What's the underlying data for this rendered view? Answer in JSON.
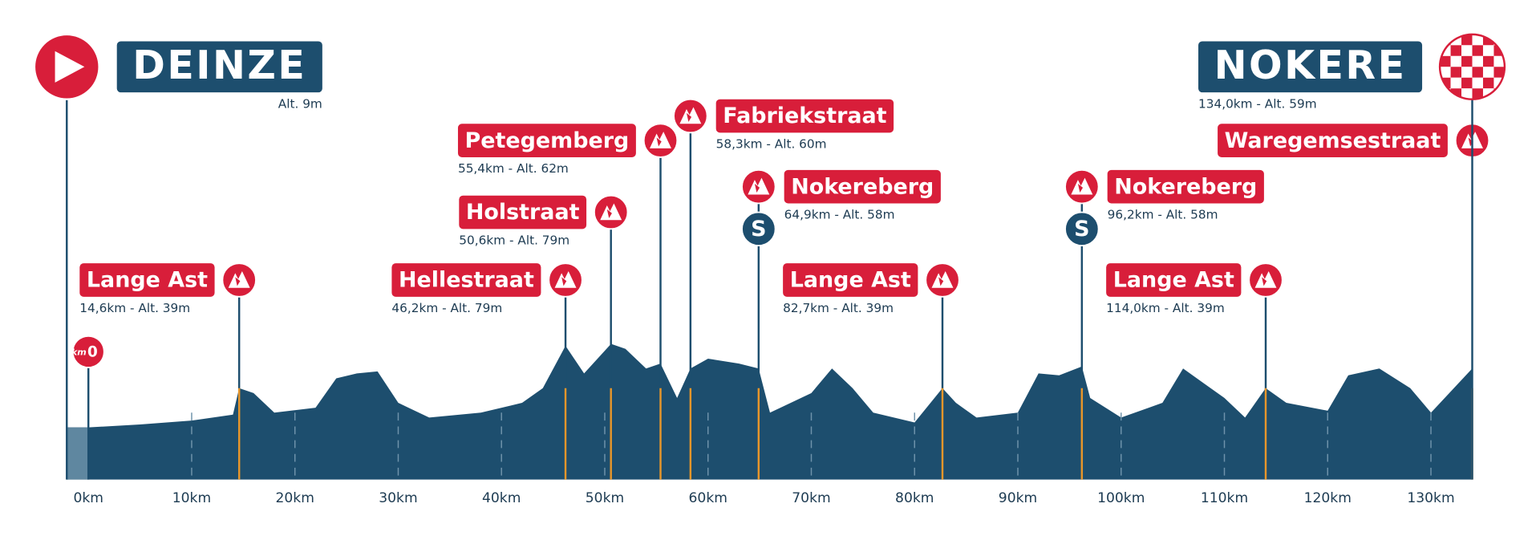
{
  "start": {
    "name": "DEINZE",
    "info": "Alt. 9m"
  },
  "finish": {
    "name": "NOKERE",
    "info": "134,0km - Alt. 59m"
  },
  "km0": {
    "unit": "km",
    "value": "0"
  },
  "climbs": [
    {
      "name": "Lange Ast",
      "info": "14,6km - Alt. 39m"
    },
    {
      "name": "Hellestraat",
      "info": "46,2km - Alt. 79m"
    },
    {
      "name": "Holstraat",
      "info": "50,6km - Alt. 79m"
    },
    {
      "name": "Petegemberg",
      "info": "55,4km - Alt. 62m"
    },
    {
      "name": "Fabriekstraat",
      "info": "58,3km - Alt. 60m"
    },
    {
      "name": "Nokereberg",
      "info": "64,9km - Alt. 58m"
    },
    {
      "name": "Lange Ast",
      "info": "82,7km - Alt. 39m"
    },
    {
      "name": "Nokereberg",
      "info": "96,2km - Alt. 58m"
    },
    {
      "name": "Lange Ast",
      "info": "114,0km - Alt. 39m"
    },
    {
      "name": "Waregemsestraat"
    }
  ],
  "sprints": [
    {
      "label": "S"
    },
    {
      "label": "S"
    }
  ],
  "axis": [
    "0km",
    "10km",
    "20km",
    "30km",
    "40km",
    "50km",
    "60km",
    "70km",
    "80km",
    "90km",
    "100km",
    "110km",
    "120km",
    "130km"
  ]
}
